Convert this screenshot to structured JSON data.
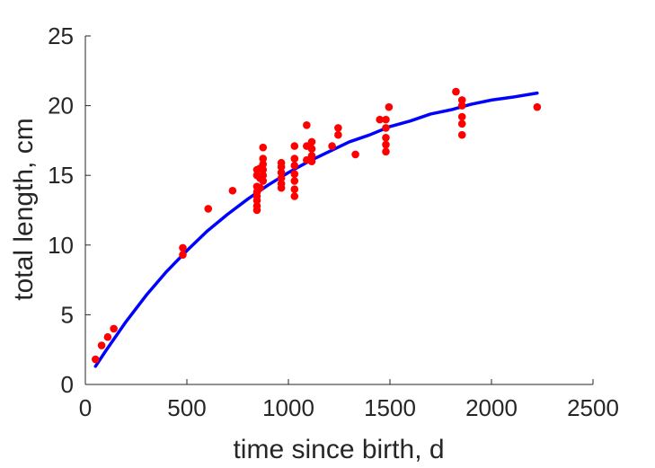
{
  "chart_data": {
    "type": "scatter",
    "xlabel": "time since birth, d",
    "ylabel": "total length, cm",
    "xlim": [
      0,
      2500
    ],
    "ylim": [
      0,
      25
    ],
    "xticks": [
      0,
      500,
      1000,
      1500,
      2000,
      2500
    ],
    "yticks": [
      0,
      5,
      10,
      15,
      20,
      25
    ],
    "grid": false,
    "colors": {
      "points": "#ff0000",
      "fit": "#0000ff",
      "axis": "#262626"
    },
    "points": [
      [
        50,
        1.8
      ],
      [
        80,
        2.8
      ],
      [
        110,
        3.4
      ],
      [
        140,
        4.0
      ],
      [
        480,
        9.8
      ],
      [
        480,
        9.3
      ],
      [
        605,
        12.6
      ],
      [
        725,
        13.9
      ],
      [
        845,
        15.4
      ],
      [
        845,
        15.0
      ],
      [
        845,
        14.2
      ],
      [
        845,
        13.8
      ],
      [
        845,
        13.5
      ],
      [
        845,
        13.2
      ],
      [
        845,
        12.8
      ],
      [
        845,
        12.5
      ],
      [
        860,
        15.5
      ],
      [
        860,
        14.8
      ],
      [
        860,
        14.1
      ],
      [
        875,
        17.0
      ],
      [
        875,
        16.2
      ],
      [
        875,
        15.8
      ],
      [
        875,
        15.4
      ],
      [
        875,
        15.0
      ],
      [
        875,
        14.6
      ],
      [
        965,
        15.9
      ],
      [
        965,
        15.6
      ],
      [
        965,
        15.2
      ],
      [
        965,
        14.8
      ],
      [
        965,
        14.4
      ],
      [
        965,
        14.1
      ],
      [
        1030,
        17.1
      ],
      [
        1030,
        16.2
      ],
      [
        1030,
        15.7
      ],
      [
        1030,
        15.1
      ],
      [
        1030,
        14.6
      ],
      [
        1030,
        14.0
      ],
      [
        1030,
        13.5
      ],
      [
        1090,
        18.6
      ],
      [
        1090,
        17.1
      ],
      [
        1090,
        16.1
      ],
      [
        1115,
        17.4
      ],
      [
        1115,
        16.9
      ],
      [
        1115,
        16.4
      ],
      [
        1115,
        16.0
      ],
      [
        1215,
        17.1
      ],
      [
        1245,
        18.4
      ],
      [
        1245,
        17.9
      ],
      [
        1330,
        16.5
      ],
      [
        1450,
        19.0
      ],
      [
        1480,
        19.0
      ],
      [
        1480,
        18.4
      ],
      [
        1480,
        17.7
      ],
      [
        1480,
        17.2
      ],
      [
        1480,
        16.7
      ],
      [
        1495,
        19.9
      ],
      [
        1825,
        21.0
      ],
      [
        1855,
        20.4
      ],
      [
        1855,
        20.0
      ],
      [
        1855,
        19.2
      ],
      [
        1855,
        18.7
      ],
      [
        1855,
        17.9
      ],
      [
        2225,
        19.9
      ]
    ],
    "fit": [
      [
        50,
        1.3
      ],
      [
        100,
        2.4
      ],
      [
        200,
        4.5
      ],
      [
        300,
        6.4
      ],
      [
        400,
        8.1
      ],
      [
        500,
        9.6
      ],
      [
        600,
        11.0
      ],
      [
        700,
        12.2
      ],
      [
        800,
        13.3
      ],
      [
        900,
        14.3
      ],
      [
        1000,
        15.2
      ],
      [
        1100,
        16.0
      ],
      [
        1200,
        16.7
      ],
      [
        1300,
        17.4
      ],
      [
        1400,
        17.9
      ],
      [
        1500,
        18.5
      ],
      [
        1600,
        18.9
      ],
      [
        1700,
        19.4
      ],
      [
        1800,
        19.7
      ],
      [
        1900,
        20.1
      ],
      [
        2000,
        20.4
      ],
      [
        2100,
        20.6
      ],
      [
        2225,
        20.9
      ]
    ]
  }
}
